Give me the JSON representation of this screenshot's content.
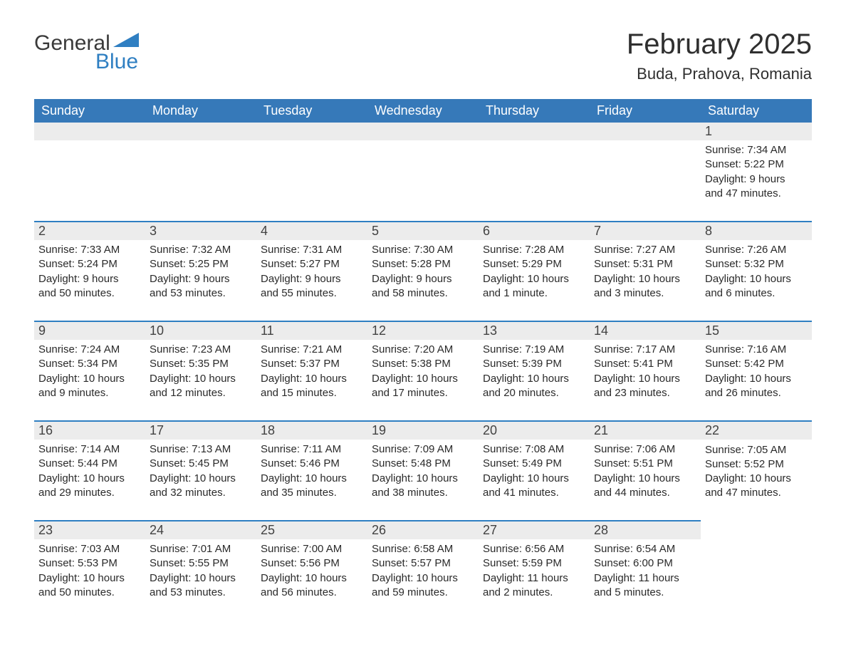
{
  "brand": {
    "word1": "General",
    "word2": "Blue",
    "sail_color": "#2f7fc2"
  },
  "header": {
    "title": "February 2025",
    "location": "Buda, Prahova, Romania"
  },
  "colors": {
    "header_bg": "#3679b9",
    "header_text": "#ffffff",
    "band_border": "#2f7fc2",
    "band_bg": "#ececec",
    "text": "#2a2a2a"
  },
  "weekdays": [
    "Sunday",
    "Monday",
    "Tuesday",
    "Wednesday",
    "Thursday",
    "Friday",
    "Saturday"
  ],
  "weeks": [
    [
      null,
      null,
      null,
      null,
      null,
      null,
      {
        "n": "1",
        "sr": "Sunrise: 7:34 AM",
        "ss": "Sunset: 5:22 PM",
        "d1": "Daylight: 9 hours",
        "d2": "and 47 minutes."
      }
    ],
    [
      {
        "n": "2",
        "sr": "Sunrise: 7:33 AM",
        "ss": "Sunset: 5:24 PM",
        "d1": "Daylight: 9 hours",
        "d2": "and 50 minutes."
      },
      {
        "n": "3",
        "sr": "Sunrise: 7:32 AM",
        "ss": "Sunset: 5:25 PM",
        "d1": "Daylight: 9 hours",
        "d2": "and 53 minutes."
      },
      {
        "n": "4",
        "sr": "Sunrise: 7:31 AM",
        "ss": "Sunset: 5:27 PM",
        "d1": "Daylight: 9 hours",
        "d2": "and 55 minutes."
      },
      {
        "n": "5",
        "sr": "Sunrise: 7:30 AM",
        "ss": "Sunset: 5:28 PM",
        "d1": "Daylight: 9 hours",
        "d2": "and 58 minutes."
      },
      {
        "n": "6",
        "sr": "Sunrise: 7:28 AM",
        "ss": "Sunset: 5:29 PM",
        "d1": "Daylight: 10 hours",
        "d2": "and 1 minute."
      },
      {
        "n": "7",
        "sr": "Sunrise: 7:27 AM",
        "ss": "Sunset: 5:31 PM",
        "d1": "Daylight: 10 hours",
        "d2": "and 3 minutes."
      },
      {
        "n": "8",
        "sr": "Sunrise: 7:26 AM",
        "ss": "Sunset: 5:32 PM",
        "d1": "Daylight: 10 hours",
        "d2": "and 6 minutes."
      }
    ],
    [
      {
        "n": "9",
        "sr": "Sunrise: 7:24 AM",
        "ss": "Sunset: 5:34 PM",
        "d1": "Daylight: 10 hours",
        "d2": "and 9 minutes."
      },
      {
        "n": "10",
        "sr": "Sunrise: 7:23 AM",
        "ss": "Sunset: 5:35 PM",
        "d1": "Daylight: 10 hours",
        "d2": "and 12 minutes."
      },
      {
        "n": "11",
        "sr": "Sunrise: 7:21 AM",
        "ss": "Sunset: 5:37 PM",
        "d1": "Daylight: 10 hours",
        "d2": "and 15 minutes."
      },
      {
        "n": "12",
        "sr": "Sunrise: 7:20 AM",
        "ss": "Sunset: 5:38 PM",
        "d1": "Daylight: 10 hours",
        "d2": "and 17 minutes."
      },
      {
        "n": "13",
        "sr": "Sunrise: 7:19 AM",
        "ss": "Sunset: 5:39 PM",
        "d1": "Daylight: 10 hours",
        "d2": "and 20 minutes."
      },
      {
        "n": "14",
        "sr": "Sunrise: 7:17 AM",
        "ss": "Sunset: 5:41 PM",
        "d1": "Daylight: 10 hours",
        "d2": "and 23 minutes."
      },
      {
        "n": "15",
        "sr": "Sunrise: 7:16 AM",
        "ss": "Sunset: 5:42 PM",
        "d1": "Daylight: 10 hours",
        "d2": "and 26 minutes."
      }
    ],
    [
      {
        "n": "16",
        "sr": "Sunrise: 7:14 AM",
        "ss": "Sunset: 5:44 PM",
        "d1": "Daylight: 10 hours",
        "d2": "and 29 minutes."
      },
      {
        "n": "17",
        "sr": "Sunrise: 7:13 AM",
        "ss": "Sunset: 5:45 PM",
        "d1": "Daylight: 10 hours",
        "d2": "and 32 minutes."
      },
      {
        "n": "18",
        "sr": "Sunrise: 7:11 AM",
        "ss": "Sunset: 5:46 PM",
        "d1": "Daylight: 10 hours",
        "d2": "and 35 minutes."
      },
      {
        "n": "19",
        "sr": "Sunrise: 7:09 AM",
        "ss": "Sunset: 5:48 PM",
        "d1": "Daylight: 10 hours",
        "d2": "and 38 minutes."
      },
      {
        "n": "20",
        "sr": "Sunrise: 7:08 AM",
        "ss": "Sunset: 5:49 PM",
        "d1": "Daylight: 10 hours",
        "d2": "and 41 minutes."
      },
      {
        "n": "21",
        "sr": "Sunrise: 7:06 AM",
        "ss": "Sunset: 5:51 PM",
        "d1": "Daylight: 10 hours",
        "d2": "and 44 minutes."
      },
      {
        "n": "22",
        "sr": "Sunrise: 7:05 AM",
        "ss": "Sunset: 5:52 PM",
        "d1": "Daylight: 10 hours",
        "d2": "and 47 minutes."
      }
    ],
    [
      {
        "n": "23",
        "sr": "Sunrise: 7:03 AM",
        "ss": "Sunset: 5:53 PM",
        "d1": "Daylight: 10 hours",
        "d2": "and 50 minutes."
      },
      {
        "n": "24",
        "sr": "Sunrise: 7:01 AM",
        "ss": "Sunset: 5:55 PM",
        "d1": "Daylight: 10 hours",
        "d2": "and 53 minutes."
      },
      {
        "n": "25",
        "sr": "Sunrise: 7:00 AM",
        "ss": "Sunset: 5:56 PM",
        "d1": "Daylight: 10 hours",
        "d2": "and 56 minutes."
      },
      {
        "n": "26",
        "sr": "Sunrise: 6:58 AM",
        "ss": "Sunset: 5:57 PM",
        "d1": "Daylight: 10 hours",
        "d2": "and 59 minutes."
      },
      {
        "n": "27",
        "sr": "Sunrise: 6:56 AM",
        "ss": "Sunset: 5:59 PM",
        "d1": "Daylight: 11 hours",
        "d2": "and 2 minutes."
      },
      {
        "n": "28",
        "sr": "Sunrise: 6:54 AM",
        "ss": "Sunset: 6:00 PM",
        "d1": "Daylight: 11 hours",
        "d2": "and 5 minutes."
      },
      null
    ]
  ]
}
